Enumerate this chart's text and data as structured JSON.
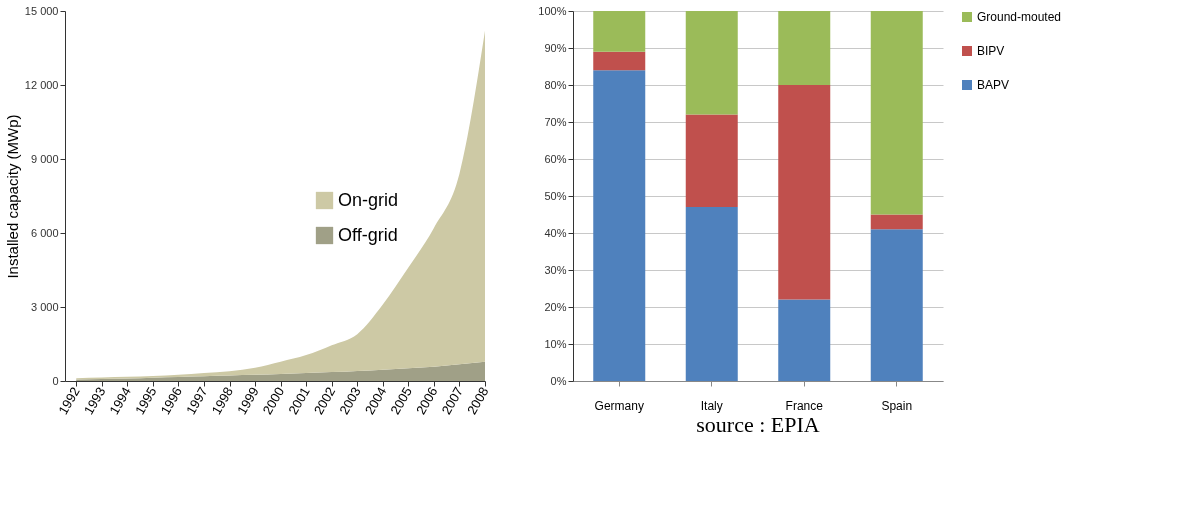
{
  "chart_data": [
    {
      "type": "area",
      "ylabel": "Installed capacity (MWp)",
      "stacked": true,
      "legend": "center right",
      "x": [
        1992,
        1993,
        1994,
        1995,
        1996,
        1997,
        1998,
        1999,
        2000,
        2001,
        2002,
        2003,
        2004,
        2005,
        2006,
        2007,
        2008
      ],
      "xlim": [
        1991.56,
        2008
      ],
      "xticks": [
        1992,
        1993,
        1994,
        1995,
        1996,
        1997,
        1998,
        1999,
        2000,
        2001,
        2002,
        2003,
        2004,
        2005,
        2006,
        2007,
        2008
      ],
      "ylim": [
        0,
        15000
      ],
      "yticks": [
        0,
        {
          "value": 3000,
          "label": "3 000"
        },
        {
          "value": 6000,
          "label": "6 000"
        },
        {
          "value": 9000,
          "label": "9 000"
        },
        {
          "value": 12000,
          "label": "12 000"
        },
        {
          "value": 15000,
          "label": "15 000"
        }
      ],
      "series": [
        {
          "name": "Off-grid",
          "color": "#a0a087",
          "values": [
            60,
            80,
            100,
            130,
            160,
            190,
            220,
            250,
            280,
            320,
            360,
            410,
            460,
            520,
            580,
            680,
            780
          ]
        },
        {
          "name": "On-grid",
          "color": "#cdc9a5",
          "values": [
            50,
            60,
            70,
            70,
            90,
            130,
            180,
            290,
            500,
            730,
            1090,
            1490,
            2640,
            4080,
            5620,
            7720,
            13420
          ]
        }
      ]
    },
    {
      "type": "bar",
      "stacked": true,
      "legend": "right",
      "grid": "y",
      "annotations": [
        "source : EPIA"
      ],
      "categories": [
        "Germany",
        "Italy",
        "France",
        "Spain"
      ],
      "ylim": [
        0,
        100
      ],
      "yticks": [
        {
          "value": 0,
          "label": "0%"
        },
        {
          "value": 10,
          "label": "10%"
        },
        {
          "value": 20,
          "label": "20%"
        },
        {
          "value": 30,
          "label": "30%"
        },
        {
          "value": 40,
          "label": "40%"
        },
        {
          "value": 50,
          "label": "50%"
        },
        {
          "value": 60,
          "label": "60%"
        },
        {
          "value": 70,
          "label": "70%"
        },
        {
          "value": 80,
          "label": "80%"
        },
        {
          "value": 90,
          "label": "90%"
        },
        {
          "value": 100,
          "label": "100%"
        }
      ],
      "series": [
        {
          "name": "BAPV",
          "color": "#4f81bd",
          "values": [
            84,
            47,
            22,
            41
          ]
        },
        {
          "name": "BIPV",
          "color": "#c0504d",
          "values": [
            5,
            25,
            58,
            4
          ]
        },
        {
          "name": "Ground-mouted",
          "color": "#9bbb59",
          "values": [
            11,
            28,
            20,
            55
          ]
        }
      ]
    }
  ]
}
